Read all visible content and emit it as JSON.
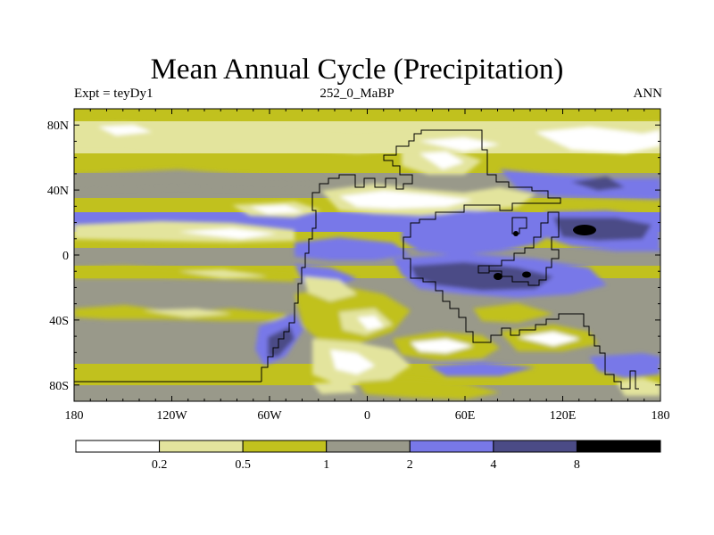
{
  "chart_data": {
    "type": "heatmap",
    "title": "Mean Annual Cycle (Precipitation)",
    "subtitle_left": "Expt = teyDy1",
    "subtitle_center": "252_0_MaBP",
    "subtitle_right": "ANN",
    "x_axis": {
      "range": [
        -180,
        180
      ],
      "ticks": [
        {
          "value": -180,
          "label": "180"
        },
        {
          "value": -120,
          "label": "120W"
        },
        {
          "value": -60,
          "label": "60W"
        },
        {
          "value": 0,
          "label": "0"
        },
        {
          "value": 60,
          "label": "60E"
        },
        {
          "value": 120,
          "label": "120E"
        },
        {
          "value": 180,
          "label": "180"
        }
      ]
    },
    "y_axis": {
      "range": [
        -90,
        90
      ],
      "ticks": [
        {
          "value": 80,
          "label": "80N"
        },
        {
          "value": 40,
          "label": "40N"
        },
        {
          "value": 0,
          "label": "0"
        },
        {
          "value": -40,
          "label": "40S"
        },
        {
          "value": -80,
          "label": "80S"
        }
      ]
    },
    "colorbar": {
      "levels": [
        "0.2",
        "0.5",
        "1",
        "2",
        "4",
        "8"
      ],
      "colors": [
        "#ffffff",
        "#e3e49d",
        "#c1c11e",
        "#99998a",
        "#7878e8",
        "#4b4b86",
        "#000000"
      ]
    }
  }
}
